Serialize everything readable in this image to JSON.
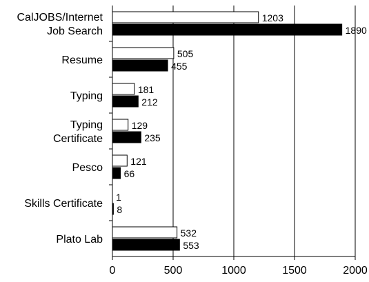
{
  "chart_data": {
    "type": "bar",
    "orientation": "horizontal",
    "title": "",
    "xlabel": "",
    "ylabel": "",
    "xlim": [
      0,
      2000
    ],
    "x_ticks": [
      "0",
      "500",
      "1000",
      "1500",
      "2000"
    ],
    "grid": "vertical lines at major ticks",
    "legend": "none",
    "categories": [
      [
        "CalJOBS/Internet",
        "Job Search"
      ],
      [
        "Resume"
      ],
      [
        "Typing"
      ],
      [
        "Typing",
        "Certificate"
      ],
      [
        "Pesco"
      ],
      [
        "Skills Certificate"
      ],
      [
        "Plato Lab"
      ]
    ],
    "series": [
      {
        "color": "#ffffff",
        "values": [
          1203,
          505,
          181,
          129,
          121,
          1,
          532
        ]
      },
      {
        "color": "#000000",
        "values": [
          1890,
          455,
          212,
          235,
          66,
          8,
          553
        ]
      }
    ],
    "data_labels": [
      [
        "1203",
        "505",
        "181",
        "129",
        "121",
        "1",
        "532"
      ],
      [
        "1890",
        "455",
        "212",
        "235",
        "66",
        "8",
        "553"
      ]
    ]
  }
}
